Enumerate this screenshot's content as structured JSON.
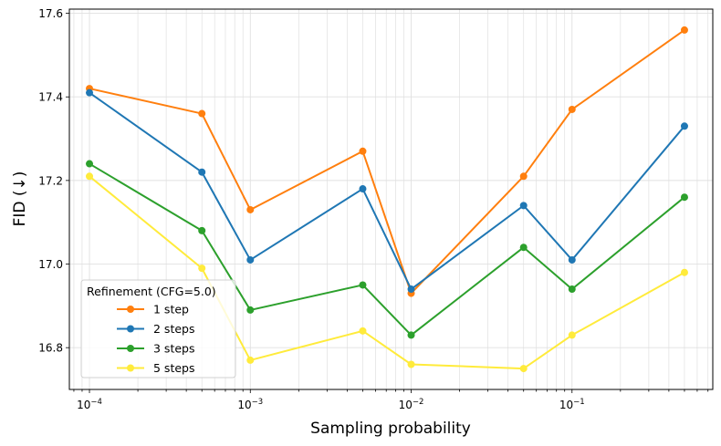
{
  "chart_data": {
    "type": "line",
    "title": "",
    "xlabel": "Sampling probability",
    "ylabel": "FID (↓)",
    "xscale": "log",
    "xlim": [
      7.5e-05,
      0.75
    ],
    "ylim": [
      16.7,
      17.61
    ],
    "grid": true,
    "x": [
      0.0001,
      0.0005,
      0.001,
      0.005,
      0.01,
      0.05,
      0.1,
      0.5
    ],
    "xticks": [
      {
        "value": 0.0001,
        "base": "10",
        "exp": "−4"
      },
      {
        "value": 0.001,
        "base": "10",
        "exp": "−3"
      },
      {
        "value": 0.01,
        "base": "10",
        "exp": "−2"
      },
      {
        "value": 0.1,
        "base": "10",
        "exp": "−1"
      }
    ],
    "yticks": [
      {
        "value": 16.8,
        "label": "16.8"
      },
      {
        "value": 17.0,
        "label": "17.0"
      },
      {
        "value": 17.2,
        "label": "17.2"
      },
      {
        "value": 17.4,
        "label": "17.4"
      },
      {
        "value": 17.6,
        "label": "17.6"
      }
    ],
    "legend": {
      "title": "Refinement (CFG=5.0)",
      "position": "lower-left"
    },
    "series": [
      {
        "name": "1 step",
        "color": "#ff7f0e",
        "values": [
          17.42,
          17.36,
          17.13,
          17.27,
          16.93,
          17.21,
          17.37,
          17.56
        ]
      },
      {
        "name": "2 steps",
        "color": "#1f77b4",
        "values": [
          17.41,
          17.22,
          17.01,
          17.18,
          16.94,
          17.14,
          17.01,
          17.33
        ]
      },
      {
        "name": "3 steps",
        "color": "#2ca02c",
        "values": [
          17.24,
          17.08,
          16.89,
          16.95,
          16.83,
          17.04,
          16.94,
          17.16
        ]
      },
      {
        "name": "5 steps",
        "color": "#ffeb3b",
        "values": [
          17.21,
          16.99,
          16.77,
          16.84,
          16.76,
          16.75,
          16.83,
          16.98
        ]
      }
    ]
  }
}
